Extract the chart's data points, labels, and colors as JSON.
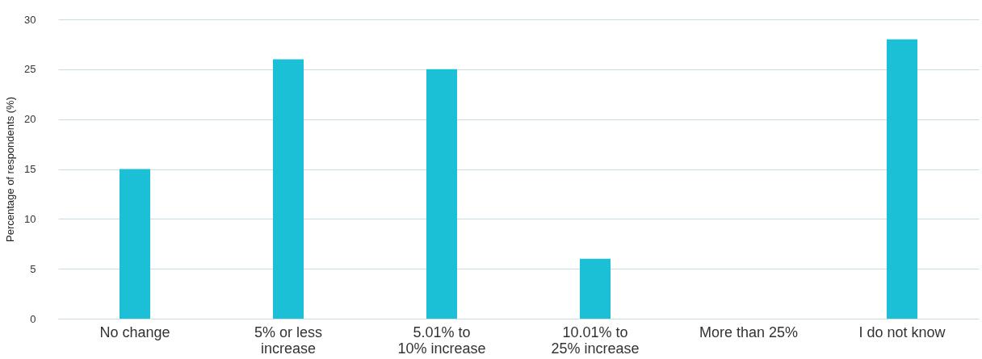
{
  "chart_data": {
    "type": "bar",
    "ylabel": "Percentage of respondents (%)",
    "categories": [
      "No change",
      "5% or less increase",
      "5.01% to 10% increase",
      "10.01% to 25% increase",
      "More than 25%",
      "I do not know"
    ],
    "values": [
      15,
      26,
      25,
      6,
      0,
      28
    ],
    "color": "#1cc0d6",
    "ylim": [
      0,
      30
    ],
    "yticks": [
      0,
      5,
      10,
      15,
      20,
      25,
      30
    ],
    "grid": "y"
  }
}
